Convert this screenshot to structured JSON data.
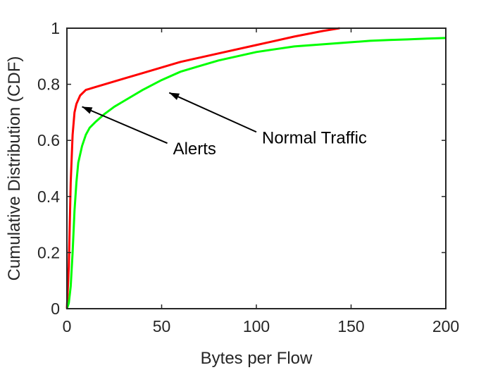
{
  "chart_data": {
    "type": "line",
    "title": "",
    "xlabel": "Bytes per Flow",
    "ylabel": "Cumulative Distribution (CDF)",
    "xlim": [
      0,
      200
    ],
    "ylim": [
      0,
      1
    ],
    "xticks": [
      0,
      50,
      100,
      150,
      200
    ],
    "xtick_labels": [
      "0",
      "50",
      "100",
      "150",
      "200"
    ],
    "yticks": [
      0,
      0.2,
      0.4,
      0.6,
      0.8,
      1
    ],
    "ytick_labels": [
      "0",
      "0.2",
      "0.4",
      "0.6",
      "0.8",
      "1"
    ],
    "grid": false,
    "series": [
      {
        "key": "alerts",
        "color": "#ff0000",
        "x": [
          0,
          1,
          2,
          3,
          4,
          5,
          7,
          10,
          15,
          20,
          30,
          40,
          60,
          80,
          100,
          120,
          135,
          144
        ],
        "y": [
          0,
          0.15,
          0.45,
          0.62,
          0.7,
          0.73,
          0.76,
          0.78,
          0.79,
          0.8,
          0.82,
          0.84,
          0.88,
          0.91,
          0.94,
          0.97,
          0.99,
          1.0
        ]
      },
      {
        "key": "normal",
        "color": "#00ff00",
        "x": [
          0,
          1,
          2,
          3,
          4,
          5,
          6,
          8,
          10,
          12,
          15,
          20,
          25,
          30,
          40,
          50,
          60,
          70,
          80,
          90,
          100,
          110,
          120,
          130,
          140,
          150,
          160,
          170,
          180,
          190,
          200
        ],
        "y": [
          0,
          0.02,
          0.08,
          0.2,
          0.35,
          0.45,
          0.52,
          0.58,
          0.62,
          0.645,
          0.665,
          0.695,
          0.72,
          0.74,
          0.78,
          0.815,
          0.845,
          0.865,
          0.885,
          0.9,
          0.915,
          0.925,
          0.935,
          0.94,
          0.945,
          0.95,
          0.955,
          0.958,
          0.96,
          0.963,
          0.965
        ]
      }
    ],
    "annotations": [
      {
        "key": "alerts",
        "text": "Alerts",
        "text_x": 53,
        "text_y": 0.59,
        "arrow_from": [
          53,
          0.59
        ],
        "arrow_to": [
          8,
          0.72
        ]
      },
      {
        "key": "normal",
        "text": "Normal Traffic",
        "text_x": 100,
        "text_y": 0.63,
        "arrow_from": [
          100,
          0.63
        ],
        "arrow_to": [
          54,
          0.77
        ]
      }
    ]
  }
}
